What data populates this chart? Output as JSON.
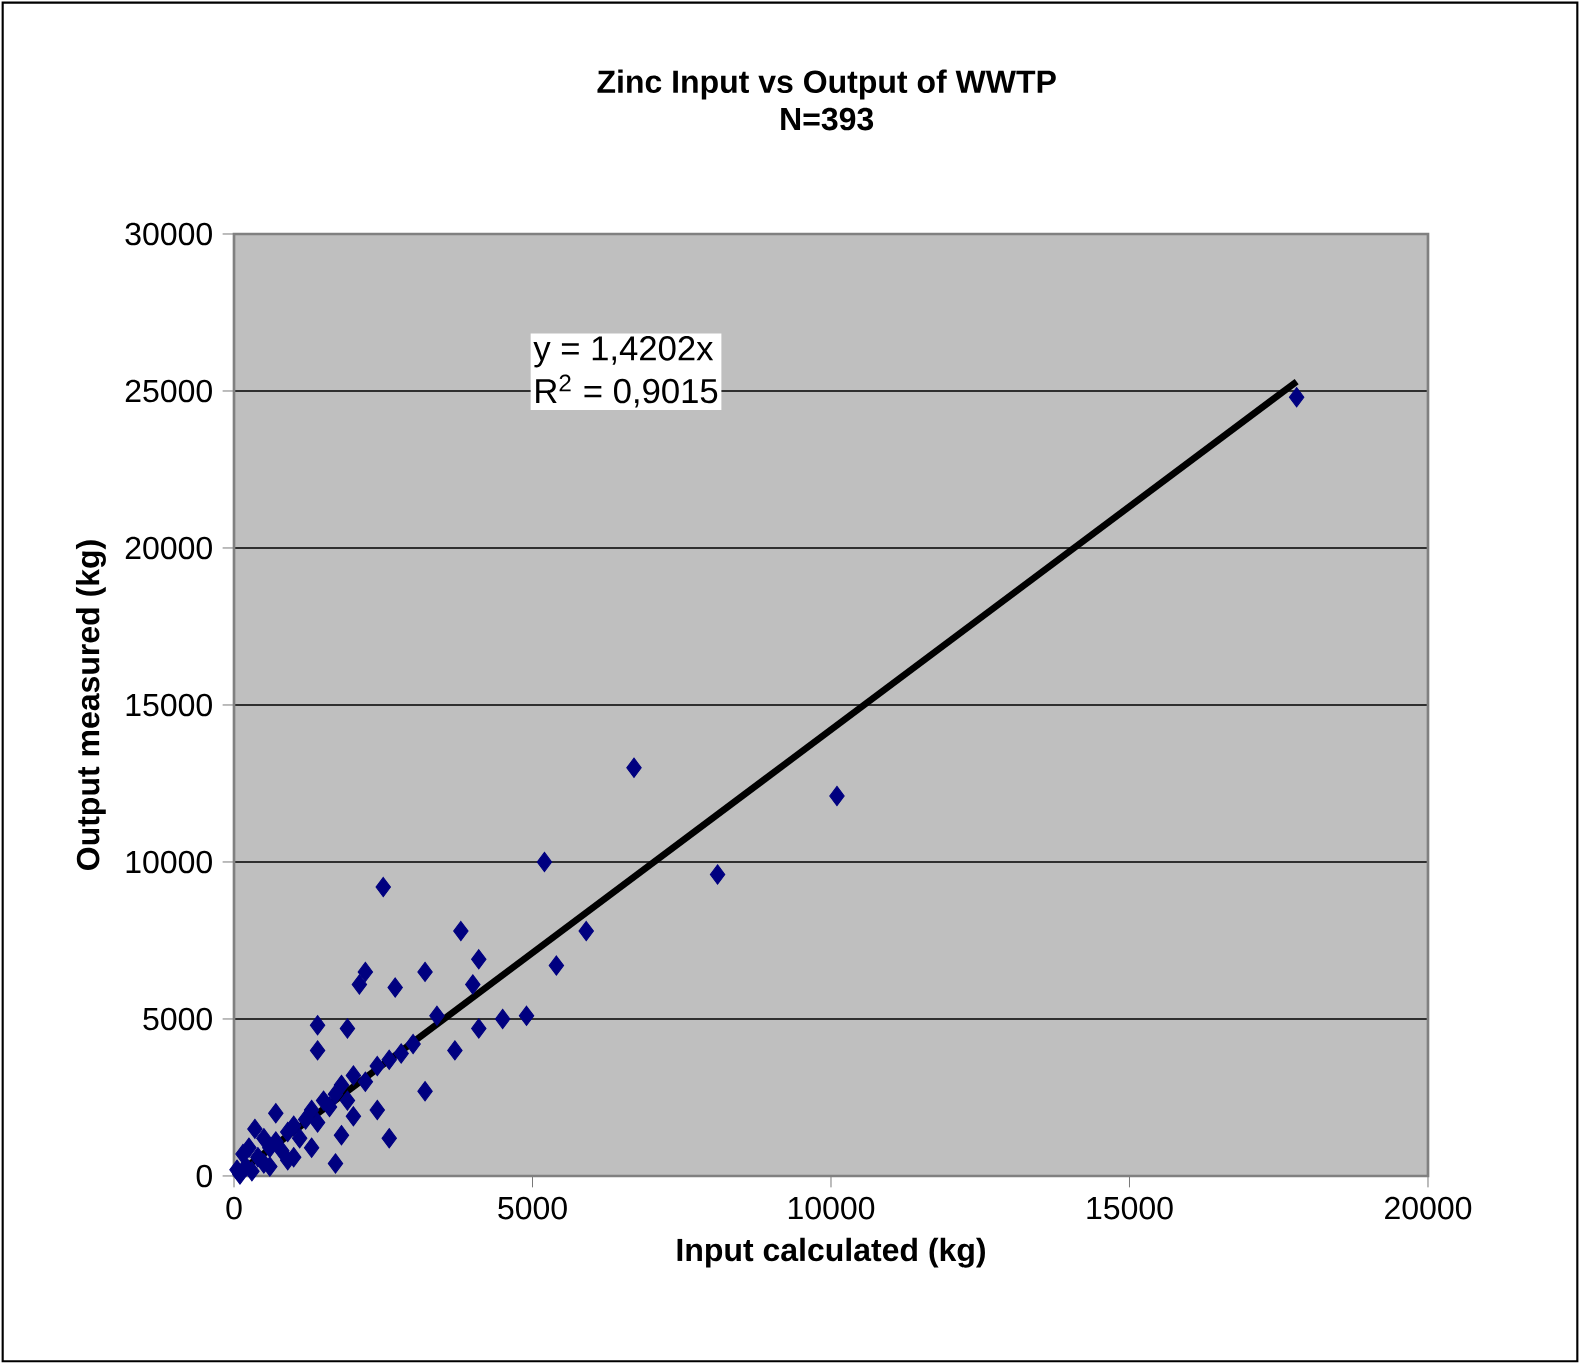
{
  "chart_data": {
    "type": "scatter",
    "title": "Zinc Input vs Output of WWTP",
    "subtitle": "N=393",
    "xlabel": "Input calculated (kg)",
    "ylabel": "Output measured (kg)",
    "xlim": [
      0,
      20000
    ],
    "ylim": [
      0,
      30000
    ],
    "xticks": [
      0,
      5000,
      10000,
      15000,
      20000
    ],
    "yticks": [
      0,
      5000,
      10000,
      15000,
      20000,
      25000,
      30000
    ],
    "grid": "y",
    "annotations": [
      "y = 1,4202x",
      "R$^{2}$ = 0,9015"
    ],
    "series": [
      {
        "color": "#000080",
        "marker": "diamond",
        "x": [
          17800,
          6700,
          10100,
          8100,
          5200,
          2500,
          3800,
          5900,
          4100,
          5400,
          2200,
          3200,
          2100,
          2700,
          4000,
          3400,
          4900,
          4500,
          4100,
          1400,
          1900,
          3700,
          1400,
          3200,
          2600,
          1700,
          100,
          200,
          300,
          400,
          500,
          600,
          700,
          800,
          900,
          1000,
          1100,
          1200,
          1300,
          1400,
          1500,
          1600,
          1700,
          1800,
          1900,
          2000,
          2200,
          2400,
          2600,
          2800,
          3000,
          500,
          700,
          250,
          1000,
          1300,
          2000,
          1800,
          600,
          150,
          350,
          50,
          2400,
          900
        ],
        "values": [
          24800,
          13000,
          12100,
          9600,
          10000,
          9200,
          7800,
          7800,
          6900,
          6700,
          6500,
          6500,
          6100,
          6000,
          6100,
          5100,
          5100,
          5000,
          4700,
          4800,
          4700,
          4000,
          4000,
          2700,
          1200,
          400,
          50,
          300,
          150,
          600,
          400,
          900,
          1100,
          800,
          1400,
          1600,
          1200,
          1800,
          2100,
          1700,
          2400,
          2200,
          2600,
          2900,
          2400,
          3200,
          3000,
          3500,
          3700,
          3900,
          4200,
          1200,
          2000,
          900,
          600,
          900,
          1900,
          1300,
          300,
          700,
          1500,
          200,
          2100,
          500
        ]
      },
      {
        "type": "line",
        "color": "#000000",
        "marker": "none",
        "x": [
          0,
          17800
        ],
        "values": [
          0,
          25300
        ]
      }
    ]
  }
}
